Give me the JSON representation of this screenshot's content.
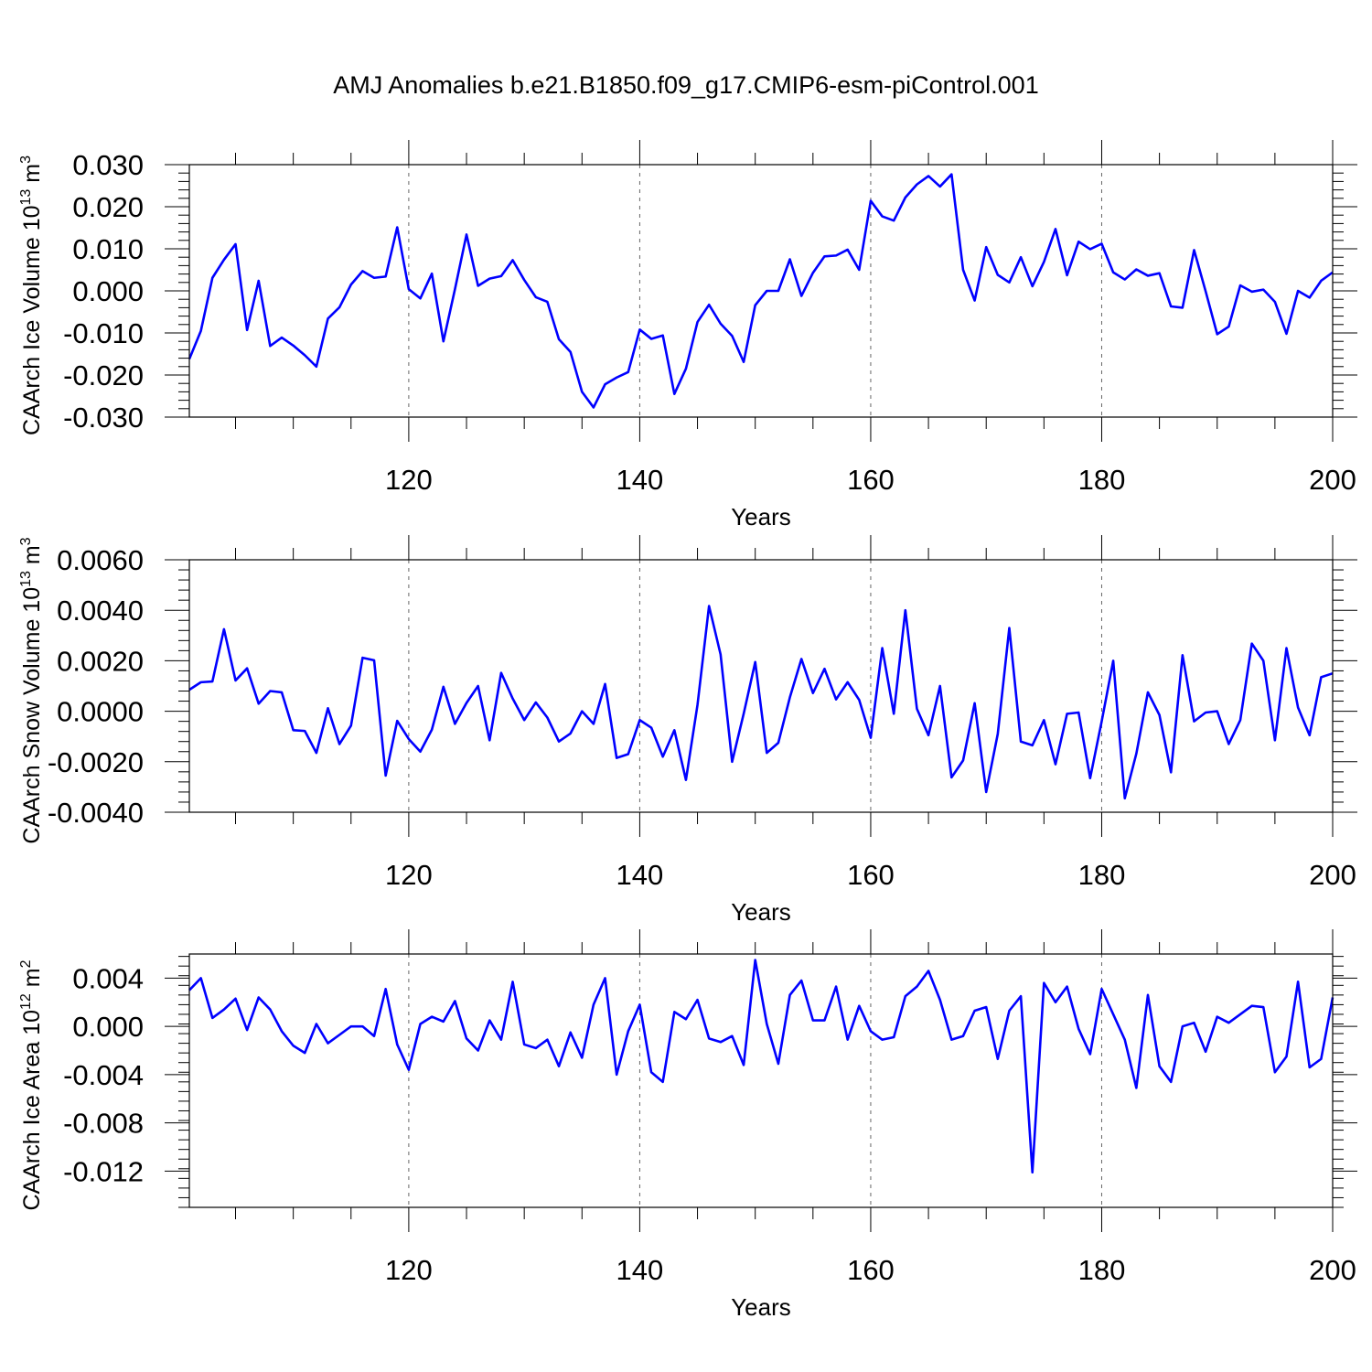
{
  "title": "AMJ Anomalies b.e21.B1850.f09_g17.CMIP6-esm-piControl.001",
  "colors": {
    "line": "#0000ff",
    "axis": "#000000",
    "grid": "#666666"
  },
  "chart_data": [
    {
      "type": "line",
      "ylabel": "CAArch Ice Volume 10",
      "ylabel_exp": "13",
      "ylabel_unit": " m",
      "ylabel_unit_exp": "3",
      "xlabel": "Years",
      "xlim": [
        101,
        200
      ],
      "ylim": [
        -0.03,
        0.03
      ],
      "yticks": [
        -0.03,
        -0.02,
        -0.01,
        0.0,
        0.01,
        0.02,
        0.03
      ],
      "ytick_labels": [
        "-0.030",
        "-0.020",
        "-0.010",
        "0.000",
        "0.010",
        "0.020",
        "0.030"
      ],
      "xticks": [
        120,
        140,
        160,
        180,
        200
      ],
      "xtick_labels": [
        "120",
        "140",
        "160",
        "180",
        "200"
      ],
      "grid": "dashed vertical at major x ticks",
      "x_start": 101,
      "values": [
        -0.0162,
        -0.0095,
        0.0031,
        0.0074,
        0.0111,
        -0.0093,
        0.0024,
        -0.0131,
        -0.0111,
        -0.013,
        -0.0153,
        -0.018,
        -0.0066,
        -0.0039,
        0.0015,
        0.0047,
        0.0031,
        0.0034,
        0.0151,
        0.0004,
        -0.0018,
        0.0041,
        -0.012,
        0.0004,
        0.0134,
        0.0012,
        0.0029,
        0.0035,
        0.0073,
        0.0026,
        -0.0015,
        -0.0026,
        -0.0115,
        -0.0145,
        -0.024,
        -0.0277,
        -0.0222,
        -0.0206,
        -0.0193,
        -0.0092,
        -0.0114,
        -0.0106,
        -0.0245,
        -0.0185,
        -0.0074,
        -0.0033,
        -0.0078,
        -0.0107,
        -0.0169,
        -0.0034,
        0.0,
        0.0,
        0.0075,
        -0.0012,
        0.0043,
        0.0082,
        0.0084,
        0.0098,
        0.005,
        0.0214,
        0.0177,
        0.0167,
        0.0222,
        0.0253,
        0.0273,
        0.0248,
        0.0277,
        0.005,
        -0.0023,
        0.0104,
        0.0038,
        0.002,
        0.008,
        0.0011,
        0.0069,
        0.0147,
        0.0037,
        0.0117,
        0.0099,
        0.0112,
        0.0044,
        0.0027,
        0.0051,
        0.0036,
        0.0042,
        -0.0037,
        -0.004,
        0.0097,
        -0.0001,
        -0.0103,
        -0.0085,
        0.0013,
        -0.0002,
        0.0003,
        -0.0026,
        -0.0102,
        0.0,
        -0.0016,
        0.0024,
        0.0044
      ]
    },
    {
      "type": "line",
      "ylabel": "CAArch Snow Volume 10",
      "ylabel_exp": "13",
      "ylabel_unit": " m",
      "ylabel_unit_exp": "3",
      "xlabel": "Years",
      "xlim": [
        101,
        200
      ],
      "ylim": [
        -0.004,
        0.006
      ],
      "yticks": [
        -0.004,
        -0.002,
        0.0,
        0.002,
        0.004,
        0.006
      ],
      "ytick_labels": [
        "-0.0040",
        "-0.0020",
        "0.0000",
        "0.0020",
        "0.0040",
        "0.0060"
      ],
      "xticks": [
        120,
        140,
        160,
        180,
        200
      ],
      "xtick_labels": [
        "120",
        "140",
        "160",
        "180",
        "200"
      ],
      "grid": "dashed vertical at major x ticks",
      "x_start": 101,
      "values": [
        0.00085,
        0.00115,
        0.00118,
        0.00325,
        0.00122,
        0.0017,
        0.0003,
        0.0008,
        0.00075,
        -0.00075,
        -0.00078,
        -0.00165,
        0.00012,
        -0.0013,
        -0.00057,
        0.00212,
        0.00202,
        -0.00255,
        -0.00038,
        -0.0011,
        -0.0016,
        -0.00073,
        0.00097,
        -0.0005,
        0.00033,
        0.001,
        -0.00115,
        0.00152,
        0.0005,
        -0.00035,
        0.00035,
        -0.00025,
        -0.0012,
        -0.00088,
        0.0,
        -0.0005,
        0.00108,
        -0.00185,
        -0.0017,
        -0.00035,
        -0.00065,
        -0.0018,
        -0.00075,
        -0.00272,
        0.00025,
        0.00417,
        0.00225,
        -0.002,
        -0.0001,
        0.00195,
        -0.00165,
        -0.00125,
        0.00055,
        0.00207,
        0.00072,
        0.00168,
        0.00047,
        0.00115,
        0.00045,
        -0.00105,
        0.0025,
        -0.0001,
        0.004,
        0.0001,
        -0.00095,
        0.001,
        -0.00262,
        -0.00195,
        0.00032,
        -0.0032,
        -0.0009,
        0.0033,
        -0.0012,
        -0.00135,
        -0.00035,
        -0.0021,
        -0.0001,
        -5e-05,
        -0.00265,
        -0.0004,
        0.002,
        -0.00345,
        -0.00168,
        0.00075,
        -0.00015,
        -0.00242,
        0.00222,
        -0.0004,
        -5e-05,
        0.0,
        -0.0013,
        -0.00035,
        0.00268,
        0.002,
        -0.00115,
        0.0025,
        0.00015,
        -0.00095,
        0.00135,
        0.0015
      ]
    },
    {
      "type": "line",
      "ylabel": "CAArch Ice Area 10",
      "ylabel_exp": "12",
      "ylabel_unit": " m",
      "ylabel_unit_exp": "2",
      "xlabel": "Years",
      "xlim": [
        101,
        200
      ],
      "ylim": [
        -0.015,
        0.006
      ],
      "yticks": [
        -0.012,
        -0.008,
        -0.004,
        0.0,
        0.004
      ],
      "ytick_labels": [
        "-0.012",
        "-0.008",
        "-0.004",
        "0.000",
        "0.004"
      ],
      "xticks": [
        120,
        140,
        160,
        180,
        200
      ],
      "xtick_labels": [
        "120",
        "140",
        "160",
        "180",
        "200"
      ],
      "grid": "dashed vertical at major x ticks",
      "x_start": 101,
      "values": [
        0.003,
        0.004,
        0.0007,
        0.0014,
        0.0023,
        -0.0003,
        0.0024,
        0.0014,
        -0.0004,
        -0.0016,
        -0.0022,
        0.0002,
        -0.0014,
        -0.0007,
        0.0,
        0.0,
        -0.0008,
        0.0031,
        -0.0015,
        -0.0036,
        0.0002,
        0.0008,
        0.0004,
        0.0021,
        -0.001,
        -0.002,
        0.0005,
        -0.0011,
        0.0037,
        -0.0015,
        -0.0018,
        -0.0011,
        -0.0033,
        -0.0005,
        -0.0026,
        0.0018,
        0.004,
        -0.004,
        -0.0004,
        0.0018,
        -0.0038,
        -0.0046,
        0.0012,
        0.0006,
        0.0022,
        -0.001,
        -0.0013,
        -0.0008,
        -0.0032,
        0.0055,
        0.0002,
        -0.0031,
        0.0026,
        0.0038,
        0.0005,
        0.0005,
        0.0033,
        -0.0011,
        0.0017,
        -0.0004,
        -0.0011,
        -0.0009,
        0.0025,
        0.0033,
        0.0046,
        0.0022,
        -0.0011,
        -0.0008,
        0.0013,
        0.0016,
        -0.0027,
        0.0013,
        0.0025,
        -0.0121,
        0.0036,
        0.002,
        0.0033,
        -0.0002,
        -0.0023,
        0.0031,
        0.001,
        -0.0011,
        -0.0051,
        0.0026,
        -0.0033,
        -0.0046,
        0.0,
        0.0003,
        -0.0021,
        0.0008,
        0.0003,
        0.001,
        0.0017,
        0.0016,
        -0.0038,
        -0.0025,
        0.0037,
        -0.0034,
        -0.0027,
        0.0024
      ]
    }
  ]
}
